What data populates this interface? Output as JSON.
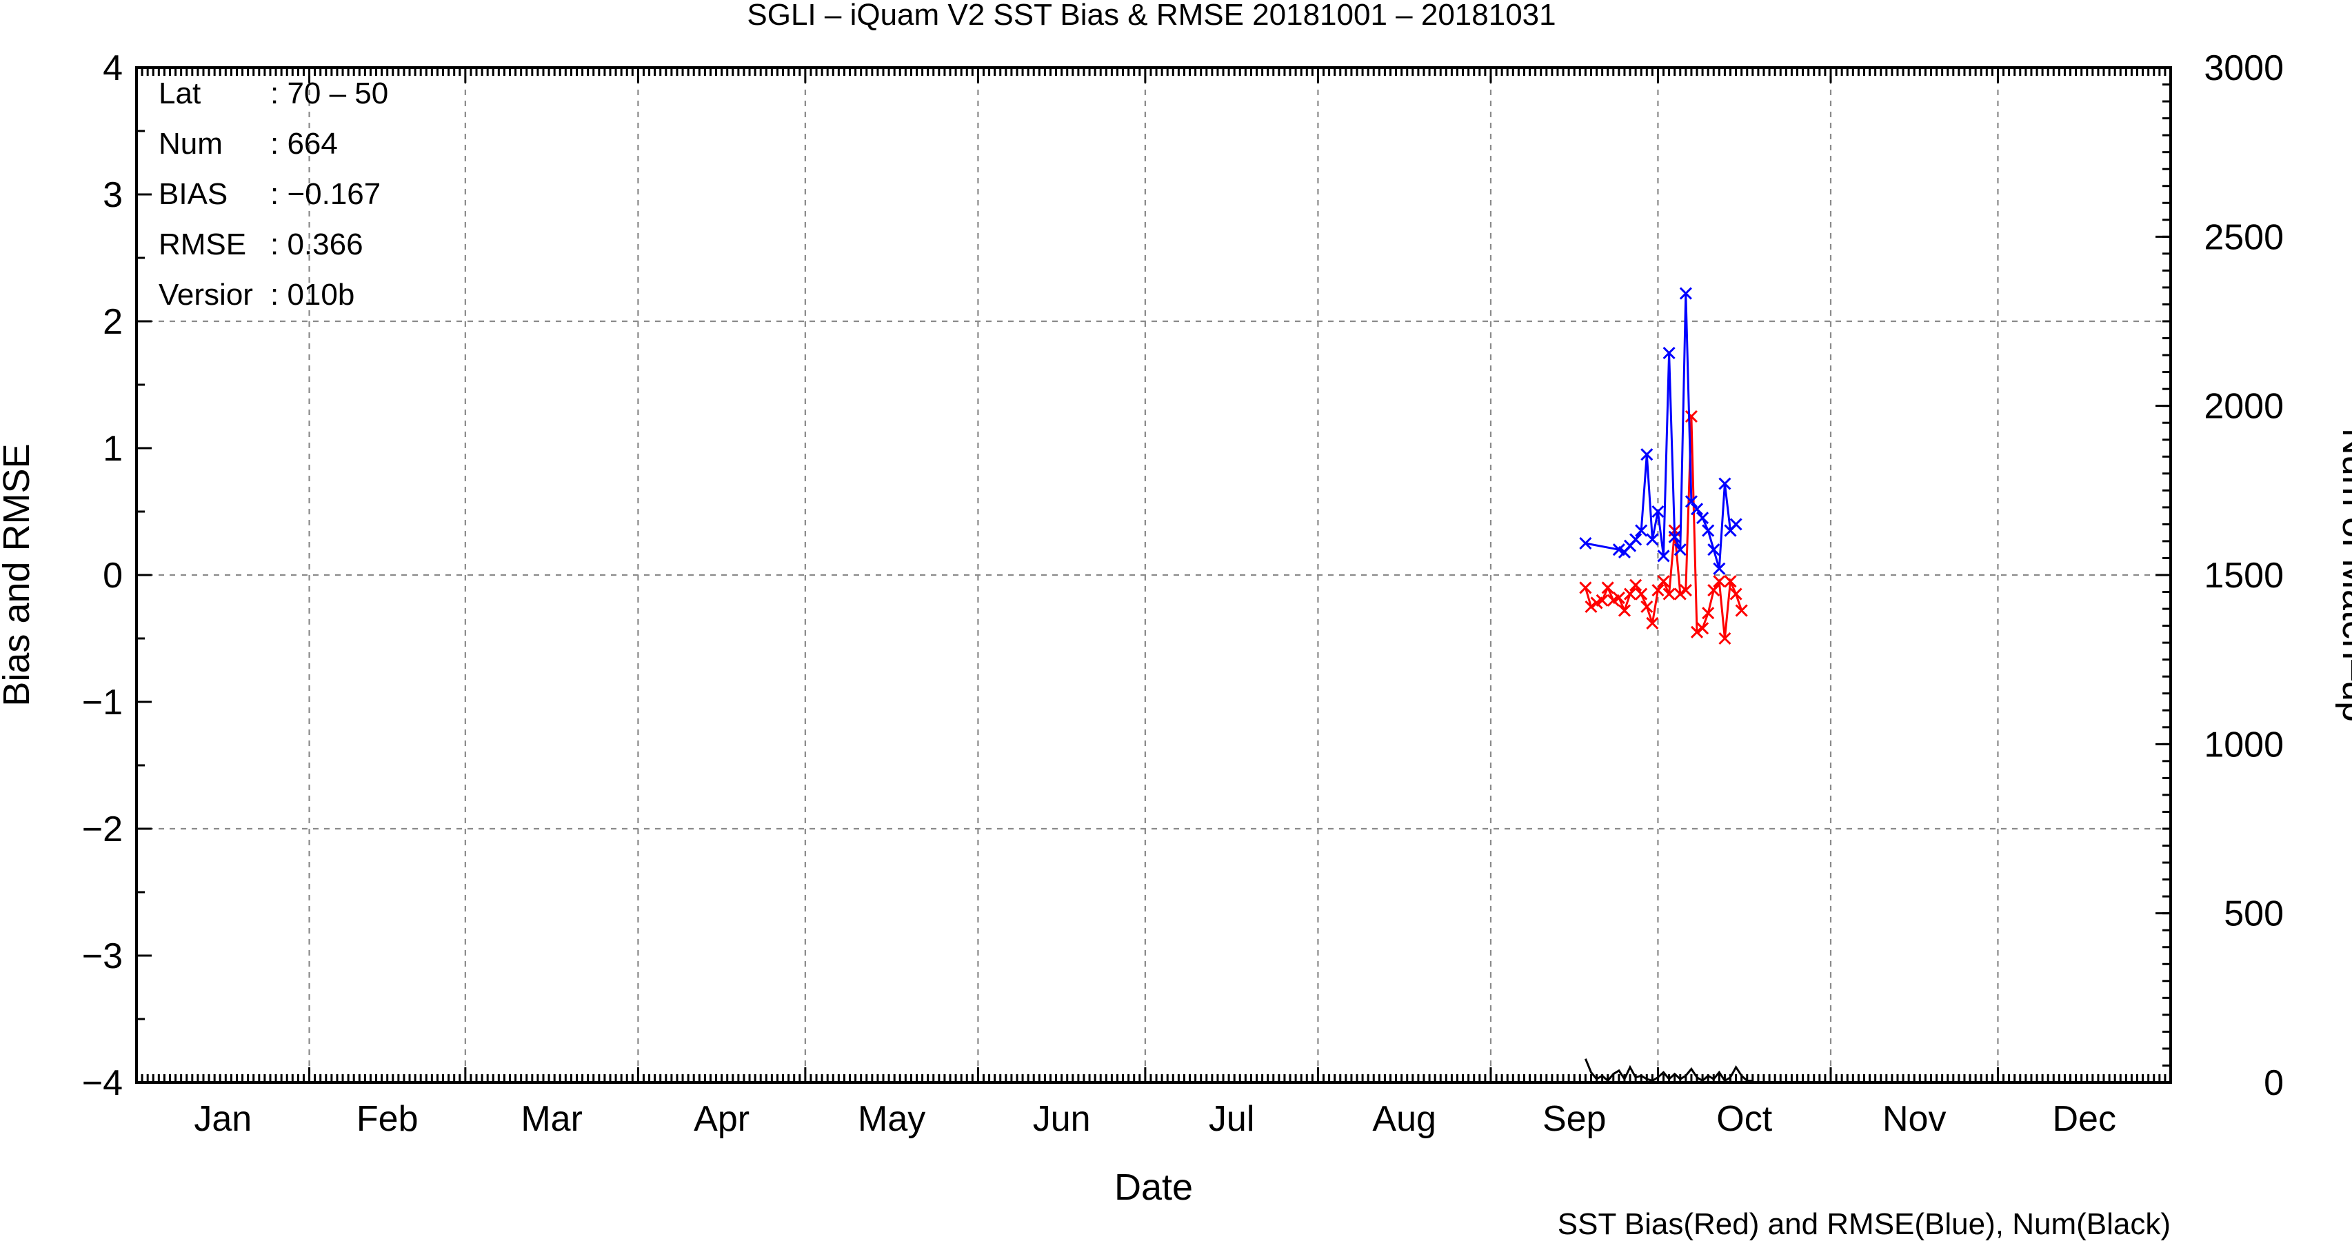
{
  "chart_data": {
    "type": "line",
    "title": "SGLI – iQuam V2 SST Bias & RMSE 20181001 – 20181031",
    "xlabel": "Date",
    "ylabel": "Bias and RMSE",
    "y2label": "Num of Match–up",
    "caption": "SST Bias(Red) and RMSE(Blue), Num(Black)",
    "x_months": [
      "Jan",
      "Feb",
      "Mar",
      "Apr",
      "May",
      "Jun",
      "Jul",
      "Aug",
      "Sep",
      "Oct",
      "Nov",
      "Dec"
    ],
    "xlim_doy": [
      1,
      366
    ],
    "ylim": [
      -4,
      4
    ],
    "y_ticks": [
      "−4",
      "−3",
      "−2",
      "−1",
      "0",
      "1",
      "2",
      "3",
      "4"
    ],
    "y2lim": [
      0,
      3000
    ],
    "y2_ticks": [
      "0",
      "500",
      "1000",
      "1500",
      "2000",
      "2500",
      "3000"
    ],
    "grid": true,
    "info": [
      {
        "key": "Lat",
        "value": ": 70 – 50"
      },
      {
        "key": "Num",
        "value": ": 664"
      },
      {
        "key": "BIAS",
        "value": ": −0.167"
      },
      {
        "key": "RMSE",
        "value": ": 0.366"
      },
      {
        "key": "Versior",
        "value": ": 010b"
      }
    ],
    "series": [
      {
        "name": "SST Bias",
        "color": "#ff0000",
        "axis": "left",
        "marker": "x",
        "x": [
          "2018-09-18",
          "2018-09-19",
          "2018-09-20",
          "2018-09-21",
          "2018-09-22",
          "2018-09-23",
          "2018-09-24",
          "2018-09-25",
          "2018-09-26",
          "2018-09-27",
          "2018-09-28",
          "2018-09-29",
          "2018-09-30",
          "2018-10-01",
          "2018-10-02",
          "2018-10-03",
          "2018-10-04",
          "2018-10-05",
          "2018-10-06",
          "2018-10-07",
          "2018-10-08",
          "2018-10-09",
          "2018-10-10",
          "2018-10-11",
          "2018-10-12",
          "2018-10-13",
          "2018-10-14",
          "2018-10-15",
          "2018-10-16",
          "2018-10-17",
          "2018-10-18"
        ],
        "values": [
          -0.1,
          -0.25,
          -0.22,
          -0.2,
          -0.1,
          -0.2,
          -0.18,
          -0.28,
          -0.15,
          -0.08,
          -0.15,
          -0.25,
          -0.38,
          -0.12,
          -0.05,
          -0.15,
          0.35,
          -0.15,
          -0.12,
          1.25,
          -0.45,
          -0.42,
          -0.3,
          -0.12,
          -0.05,
          -0.5,
          -0.05,
          -0.15,
          -0.28,
          null,
          null
        ]
      },
      {
        "name": "SST RMSE",
        "color": "#0000ff",
        "axis": "left",
        "marker": "x",
        "x": [
          "2018-09-18",
          "2018-09-19",
          "2018-09-20",
          "2018-09-21",
          "2018-09-22",
          "2018-09-23",
          "2018-09-24",
          "2018-09-25",
          "2018-09-26",
          "2018-09-27",
          "2018-09-28",
          "2018-09-29",
          "2018-09-30",
          "2018-10-01",
          "2018-10-02",
          "2018-10-03",
          "2018-10-04",
          "2018-10-05",
          "2018-10-06",
          "2018-10-07",
          "2018-10-08",
          "2018-10-09",
          "2018-10-10",
          "2018-10-11",
          "2018-10-12",
          "2018-10-13",
          "2018-10-14",
          "2018-10-15",
          "2018-10-16",
          "2018-10-17",
          "2018-10-18"
        ],
        "values": [
          0.25,
          null,
          null,
          null,
          null,
          null,
          0.2,
          0.18,
          0.23,
          0.28,
          0.35,
          0.95,
          0.28,
          0.5,
          0.15,
          1.75,
          0.3,
          0.2,
          2.22,
          0.58,
          0.52,
          0.45,
          0.35,
          0.2,
          0.05,
          0.72,
          0.35,
          0.4,
          null,
          null,
          null
        ]
      },
      {
        "name": "Num",
        "color": "#000000",
        "axis": "right",
        "marker": "none",
        "x": [
          "2018-09-18",
          "2018-09-19",
          "2018-09-20",
          "2018-09-21",
          "2018-09-22",
          "2018-09-23",
          "2018-09-24",
          "2018-09-25",
          "2018-09-26",
          "2018-09-27",
          "2018-09-28",
          "2018-09-29",
          "2018-09-30",
          "2018-10-01",
          "2018-10-02",
          "2018-10-03",
          "2018-10-04",
          "2018-10-05",
          "2018-10-06",
          "2018-10-07",
          "2018-10-08",
          "2018-10-09",
          "2018-10-10",
          "2018-10-11",
          "2018-10-12",
          "2018-10-13",
          "2018-10-14",
          "2018-10-15",
          "2018-10-16",
          "2018-10-17",
          "2018-10-18"
        ],
        "values": [
          70,
          30,
          10,
          20,
          5,
          25,
          35,
          10,
          45,
          15,
          20,
          10,
          5,
          15,
          30,
          10,
          25,
          10,
          20,
          40,
          15,
          5,
          20,
          10,
          30,
          5,
          15,
          45,
          20,
          5,
          5
        ]
      }
    ]
  }
}
